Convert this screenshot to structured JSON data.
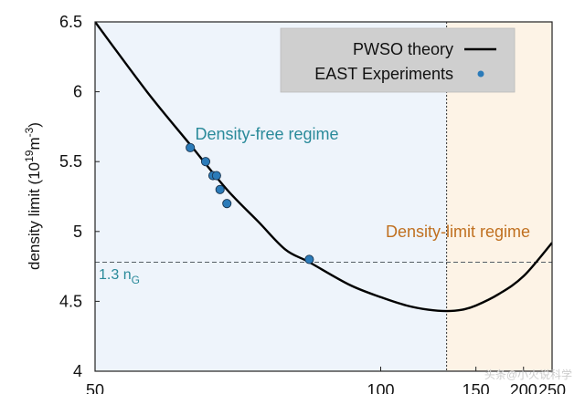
{
  "chart_data": {
    "type": "scatter",
    "x_ticks": [
      50,
      100,
      150,
      200,
      250
    ],
    "y_ticks": [
      "4",
      "4.5",
      "5",
      "5.5",
      "6",
      "6.5"
    ],
    "y_tick_values": [
      4,
      4.5,
      5,
      5.5,
      6,
      6.5
    ],
    "xlim": [
      50,
      250
    ],
    "ylim": [
      4,
      6.5
    ],
    "x_scale": "reciprocal",
    "ylabel_main": "density limit (10",
    "ylabel_exp1": "19",
    "ylabel_mid": "m",
    "ylabel_exp2": "-3",
    "ylabel_end": ")",
    "legend": {
      "placement": "top-right",
      "theory_label": "PWSO theory",
      "experiment_label": "EAST Experiments"
    },
    "regions": {
      "left_label": "Density-free regime",
      "left_color": "#eef4fb",
      "left_label_color": "#2a8a9a",
      "right_label": "Density-limit regime",
      "right_color": "#fdf3e6",
      "right_label_color": "#c07020",
      "boundary_x": 130
    },
    "reference_line": {
      "y": 4.78,
      "label_main": "1.3 n",
      "label_sub": "G",
      "color": "#2a8a9a"
    },
    "theory_curve": {
      "name": "PWSO theory",
      "color": "#000000",
      "x": [
        50,
        55,
        60,
        65,
        70,
        75,
        80,
        90,
        100,
        110,
        120,
        130,
        140,
        150,
        170,
        200,
        250
      ],
      "y": [
        6.5,
        6.0,
        5.62,
        5.3,
        5.07,
        4.87,
        4.78,
        4.62,
        4.53,
        4.47,
        4.44,
        4.43,
        4.44,
        4.47,
        4.55,
        4.68,
        4.92
      ]
    },
    "experiments": {
      "name": "EAST Experiments",
      "color": "#2b7bb9",
      "x": [
        60,
        62,
        63,
        63.5,
        64,
        65,
        80
      ],
      "y": [
        5.6,
        5.5,
        5.4,
        5.4,
        5.3,
        5.2,
        4.8
      ]
    },
    "watermark": "头条@小火说科学"
  }
}
